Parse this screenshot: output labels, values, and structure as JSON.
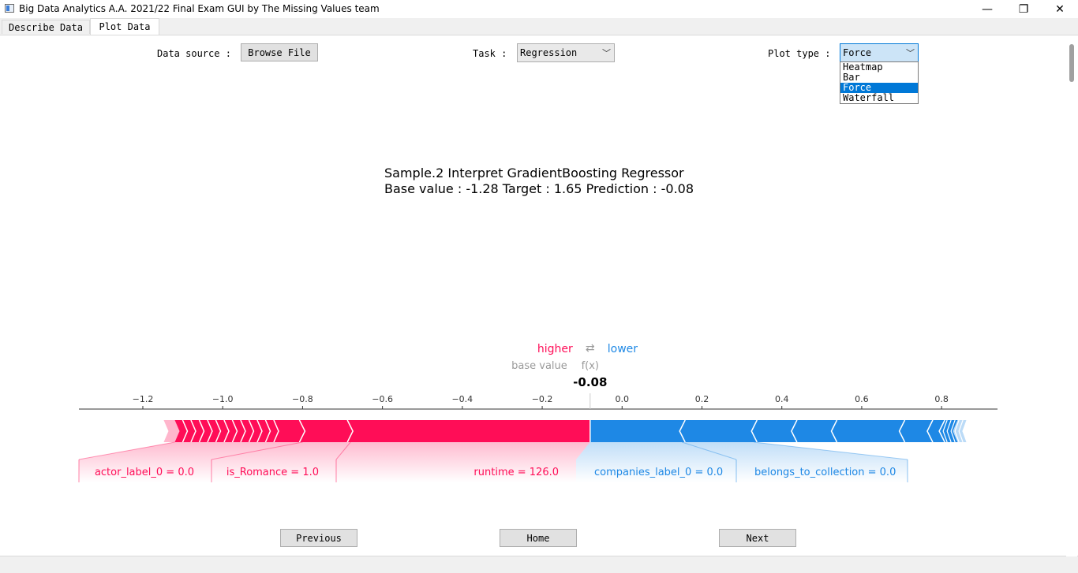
{
  "window": {
    "title": "Big Data Analytics A.A. 2021/22 Final Exam GUI by The Missing Values team",
    "minimize": "—",
    "restore": "❐",
    "close": "✕"
  },
  "tabs": [
    {
      "label": "Describe Data",
      "active": false
    },
    {
      "label": "Plot Data",
      "active": true
    }
  ],
  "controls": {
    "data_source_label": "Data source :",
    "browse_button": "Browse File",
    "task_label": "Task :",
    "task_value": "Regression",
    "plot_type_label": "Plot type :",
    "plot_type_value": "Force",
    "plot_type_options": [
      "Heatmap",
      "Bar",
      "Force",
      "Waterfall"
    ],
    "plot_type_selected_index": 2
  },
  "heading": {
    "line1": "Sample.2     Interpret GradientBoosting Regressor",
    "line2": "Base value : -1.28    Target : 1.65    Prediction : -0.08"
  },
  "chart_data": {
    "type": "force",
    "legend_higher": "higher",
    "legend_arrow": "⇄",
    "legend_lower": "lower",
    "base_value_label": "base value",
    "fx_label": "f(x)",
    "fx_value": "-0.08",
    "base_value": -1.28,
    "prediction": -0.08,
    "xlim": [
      -1.36,
      0.94
    ],
    "ticks": [
      -1.2,
      -1.0,
      -0.8,
      -0.6,
      -0.4,
      -0.2,
      0.0,
      0.2,
      0.4,
      0.6,
      0.8
    ],
    "tick_labels": [
      "−1.2",
      "−1.0",
      "−0.8",
      "−0.6",
      "−0.4",
      "−0.2",
      "0.0",
      "0.2",
      "0.4",
      "0.6",
      "0.8"
    ],
    "positive_color": "#ff0d57",
    "negative_color": "#1e88e5",
    "positive_range": [
      -1.12,
      -0.08
    ],
    "negative_range": [
      -0.08,
      0.84
    ],
    "positive_segments": [
      -0.8,
      -0.68
    ],
    "negative_segments": [
      0.15,
      0.33,
      0.43,
      0.53,
      0.7,
      0.77,
      0.8
    ],
    "positive_features": [
      {
        "label": "actor_label_0 = 0.0",
        "start": -1.12,
        "end": -0.8
      },
      {
        "label": "is_Romance = 1.0",
        "start": -0.8,
        "end": -0.68
      },
      {
        "label": "runtime = 126.0",
        "start": -0.68,
        "end": -0.08
      }
    ],
    "negative_features": [
      {
        "label": "companies_label_0 = 0.0",
        "start": -0.08,
        "end": 0.15
      },
      {
        "label": "belongs_to_collection = 0.0",
        "start": 0.15,
        "end": 0.33
      }
    ]
  },
  "nav": {
    "previous": "Previous",
    "home": "Home",
    "next": "Next"
  }
}
